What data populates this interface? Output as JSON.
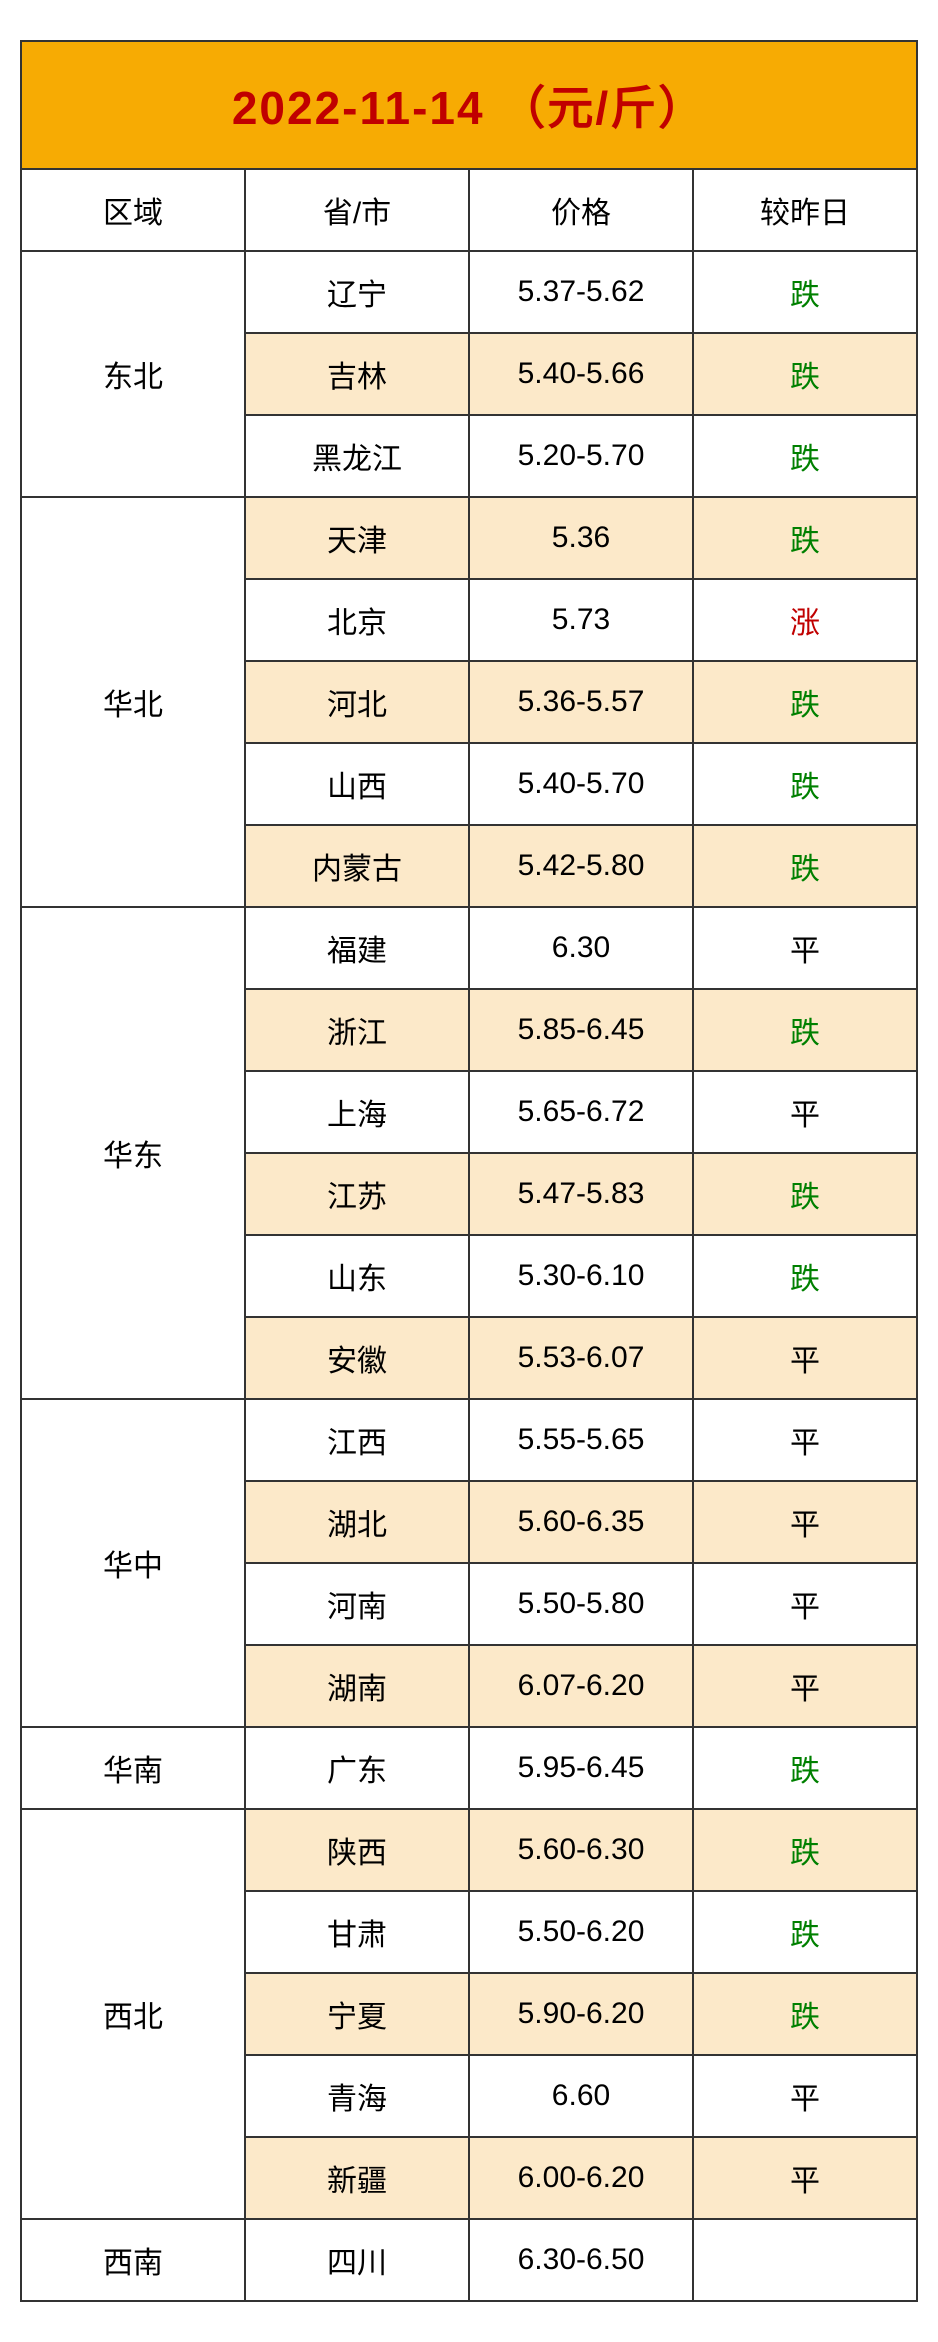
{
  "title": "2022-11-14  （元/斤）",
  "colors": {
    "title_bg": "#f7ab03",
    "title_text": "#c00000",
    "highlight_bg": "#fce9c9",
    "border": "#333333",
    "down": "#008000",
    "up": "#c00000",
    "flat": "#000000"
  },
  "headers": {
    "region": "区域",
    "province": "省/市",
    "price": "价格",
    "change": "较昨日"
  },
  "changeLabels": {
    "down": "跌",
    "up": "涨",
    "flat": "平"
  },
  "data": [
    {
      "region": "东北",
      "rows": [
        {
          "province": "辽宁",
          "price": "5.37-5.62",
          "change": "down",
          "highlight": false
        },
        {
          "province": "吉林",
          "price": "5.40-5.66",
          "change": "down",
          "highlight": true
        },
        {
          "province": "黑龙江",
          "price": "5.20-5.70",
          "change": "down",
          "highlight": false
        }
      ]
    },
    {
      "region": "华北",
      "rows": [
        {
          "province": "天津",
          "price": "5.36",
          "change": "down",
          "highlight": true
        },
        {
          "province": "北京",
          "price": "5.73",
          "change": "up",
          "highlight": false
        },
        {
          "province": "河北",
          "price": "5.36-5.57",
          "change": "down",
          "highlight": true
        },
        {
          "province": "山西",
          "price": "5.40-5.70",
          "change": "down",
          "highlight": false
        },
        {
          "province": "内蒙古",
          "price": "5.42-5.80",
          "change": "down",
          "highlight": true
        }
      ]
    },
    {
      "region": "华东",
      "rows": [
        {
          "province": "福建",
          "price": "6.30",
          "change": "flat",
          "highlight": false
        },
        {
          "province": "浙江",
          "price": "5.85-6.45",
          "change": "down",
          "highlight": true
        },
        {
          "province": "上海",
          "price": "5.65-6.72",
          "change": "flat",
          "highlight": false
        },
        {
          "province": "江苏",
          "price": "5.47-5.83",
          "change": "down",
          "highlight": true
        },
        {
          "province": "山东",
          "price": "5.30-6.10",
          "change": "down",
          "highlight": false
        },
        {
          "province": "安徽",
          "price": "5.53-6.07",
          "change": "flat",
          "highlight": true
        }
      ]
    },
    {
      "region": "华中",
      "rows": [
        {
          "province": "江西",
          "price": "5.55-5.65",
          "change": "flat",
          "highlight": false
        },
        {
          "province": "湖北",
          "price": "5.60-6.35",
          "change": "flat",
          "highlight": true
        },
        {
          "province": "河南",
          "price": "5.50-5.80",
          "change": "flat",
          "highlight": false
        },
        {
          "province": "湖南",
          "price": "6.07-6.20",
          "change": "flat",
          "highlight": true
        }
      ]
    },
    {
      "region": "华南",
      "rows": [
        {
          "province": "广东",
          "price": "5.95-6.45",
          "change": "down",
          "highlight": false
        }
      ]
    },
    {
      "region": "西北",
      "rows": [
        {
          "province": "陕西",
          "price": "5.60-6.30",
          "change": "down",
          "highlight": true
        },
        {
          "province": "甘肃",
          "price": "5.50-6.20",
          "change": "down",
          "highlight": false
        },
        {
          "province": "宁夏",
          "price": "5.90-6.20",
          "change": "down",
          "highlight": true
        },
        {
          "province": "青海",
          "price": "6.60",
          "change": "flat",
          "highlight": false
        },
        {
          "province": "新疆",
          "price": "6.00-6.20",
          "change": "flat",
          "highlight": true
        }
      ]
    },
    {
      "region": "西南",
      "rows": [
        {
          "province": "四川",
          "price": "6.30-6.50",
          "change": "",
          "highlight": false
        }
      ]
    }
  ]
}
